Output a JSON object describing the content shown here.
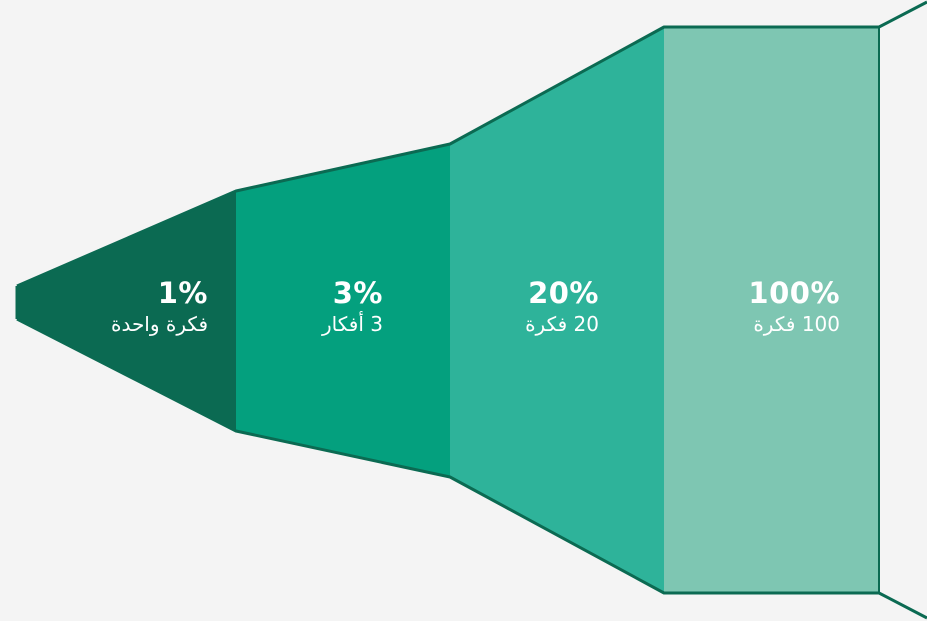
{
  "funnel": {
    "colors": {
      "background": "#f4f4f4",
      "outline": "#0b6a52",
      "stage_fills": [
        "#7ec6b2",
        "#2eb39a",
        "#04a07e",
        "#0b6a52"
      ]
    },
    "stages": [
      {
        "percent": "100%",
        "caption": "100 فكرة"
      },
      {
        "percent": "20%",
        "caption": "20 فكرة"
      },
      {
        "percent": "3%",
        "caption": "3 أفكار"
      },
      {
        "percent": "1%",
        "caption": "فكرة واحدة"
      }
    ]
  }
}
